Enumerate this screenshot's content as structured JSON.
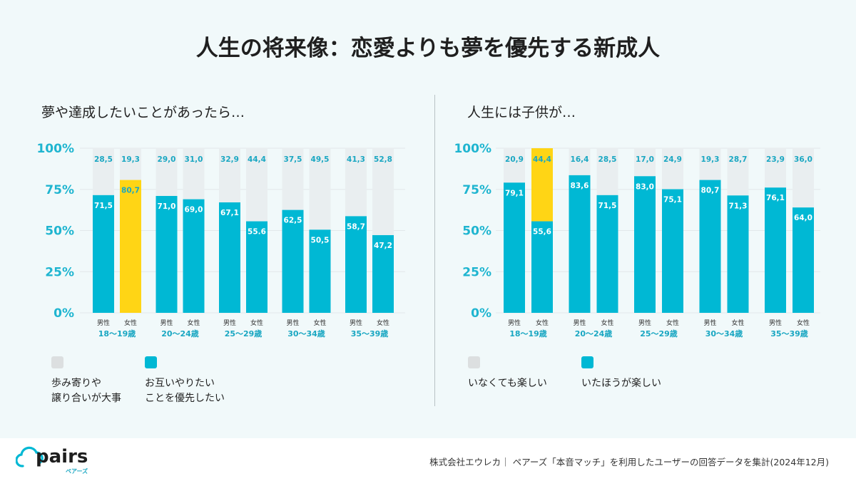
{
  "title": "人生の将来像：恋愛よりも夢を優先する新成人",
  "colors": {
    "cyan": "#00b8d4",
    "yellow": "#ffd515",
    "grey": "#e9eef0",
    "grid": "#e2e8ea"
  },
  "source": "株式会社エウレカ｜ ペアーズ「本音マッチ」を利用したユーザーの回答データを集計(2024年12月)",
  "logo": {
    "word": "pairs",
    "kana": "ペアーズ",
    "icon": "cloud-icon"
  },
  "chart_data": [
    {
      "type": "bar",
      "stacked": true,
      "title": "夢や達成したいことがあったら…",
      "yticks": [
        "100%",
        "75%",
        "50%",
        "25%",
        "0%"
      ],
      "ylim": [
        0,
        100
      ],
      "sex_labels": [
        "男性",
        "女性"
      ],
      "age_groups": [
        "18〜19歳",
        "20〜24歳",
        "25〜29歳",
        "30〜34歳",
        "35〜39歳"
      ],
      "bars": [
        {
          "age": "18〜19歳",
          "sex": "男性",
          "bottom": 71.5,
          "top": 28.5,
          "bottom_label": "71,5",
          "top_label": "28,5"
        },
        {
          "age": "18〜19歳",
          "sex": "女性",
          "bottom": 80.7,
          "top": 19.3,
          "bottom_label": "80,7",
          "top_label": "19,3",
          "highlight": true
        },
        {
          "age": "20〜24歳",
          "sex": "男性",
          "bottom": 71.0,
          "top": 29.0,
          "bottom_label": "71,0",
          "top_label": "29,0"
        },
        {
          "age": "20〜24歳",
          "sex": "女性",
          "bottom": 69.0,
          "top": 31.0,
          "bottom_label": "69,0",
          "top_label": "31,0"
        },
        {
          "age": "25〜29歳",
          "sex": "男性",
          "bottom": 67.1,
          "top": 32.9,
          "bottom_label": "67,1",
          "top_label": "32,9"
        },
        {
          "age": "25〜29歳",
          "sex": "女性",
          "bottom": 55.6,
          "top": 44.4,
          "bottom_label": "55.6",
          "top_label": "44,4"
        },
        {
          "age": "30〜34歳",
          "sex": "男性",
          "bottom": 62.5,
          "top": 37.5,
          "bottom_label": "62,5",
          "top_label": "37,5"
        },
        {
          "age": "30〜34歳",
          "sex": "女性",
          "bottom": 50.5,
          "top": 49.5,
          "bottom_label": "50,5",
          "top_label": "49,5"
        },
        {
          "age": "35〜39歳",
          "sex": "男性",
          "bottom": 58.7,
          "top": 41.3,
          "bottom_label": "58,7",
          "top_label": "41,3"
        },
        {
          "age": "35〜39歳",
          "sex": "女性",
          "bottom": 47.2,
          "top": 52.8,
          "bottom_label": "47,2",
          "top_label": "52,8"
        }
      ],
      "legend": [
        {
          "name": "歩み寄りや\n譲り合いが大事",
          "color": "#dcdfe0"
        },
        {
          "name": "お互いやりたい\nことを優先したい",
          "color": "#00b8d4"
        }
      ]
    },
    {
      "type": "bar",
      "stacked": true,
      "title": "人生には子供が…",
      "yticks": [
        "100%",
        "75%",
        "50%",
        "25%",
        "0%"
      ],
      "ylim": [
        0,
        100
      ],
      "sex_labels": [
        "男性",
        "女性"
      ],
      "age_groups": [
        "18〜19歳",
        "20〜24歳",
        "25〜29歳",
        "30〜34歳",
        "35〜39歳"
      ],
      "bars": [
        {
          "age": "18〜19歳",
          "sex": "男性",
          "bottom": 79.1,
          "top": 20.9,
          "bottom_label": "79,1",
          "top_label": "20,9"
        },
        {
          "age": "18〜19歳",
          "sex": "女性",
          "bottom": 55.6,
          "top": 44.4,
          "bottom_label": "55,6",
          "top_label": "44,4",
          "highlight": true
        },
        {
          "age": "20〜24歳",
          "sex": "男性",
          "bottom": 83.6,
          "top": 16.4,
          "bottom_label": "83,6",
          "top_label": "16,4"
        },
        {
          "age": "20〜24歳",
          "sex": "女性",
          "bottom": 71.5,
          "top": 28.5,
          "bottom_label": "71,5",
          "top_label": "28,5"
        },
        {
          "age": "25〜29歳",
          "sex": "男性",
          "bottom": 83.0,
          "top": 17.0,
          "bottom_label": "83,0",
          "top_label": "17,0"
        },
        {
          "age": "25〜29歳",
          "sex": "女性",
          "bottom": 75.1,
          "top": 24.9,
          "bottom_label": "75,1",
          "top_label": "24,9"
        },
        {
          "age": "30〜34歳",
          "sex": "男性",
          "bottom": 80.7,
          "top": 19.3,
          "bottom_label": "80,7",
          "top_label": "19,3"
        },
        {
          "age": "30〜34歳",
          "sex": "女性",
          "bottom": 71.3,
          "top": 28.7,
          "bottom_label": "71,3",
          "top_label": "28,7"
        },
        {
          "age": "35〜39歳",
          "sex": "男性",
          "bottom": 76.1,
          "top": 23.9,
          "bottom_label": "76,1",
          "top_label": "23,9"
        },
        {
          "age": "35〜39歳",
          "sex": "女性",
          "bottom": 64.0,
          "top": 36.0,
          "bottom_label": "64,0",
          "top_label": "36,0"
        }
      ],
      "legend": [
        {
          "name": "いなくても楽しい",
          "color": "#dcdfe0"
        },
        {
          "name": "いたほうが楽しい",
          "color": "#00b8d4"
        }
      ]
    }
  ]
}
